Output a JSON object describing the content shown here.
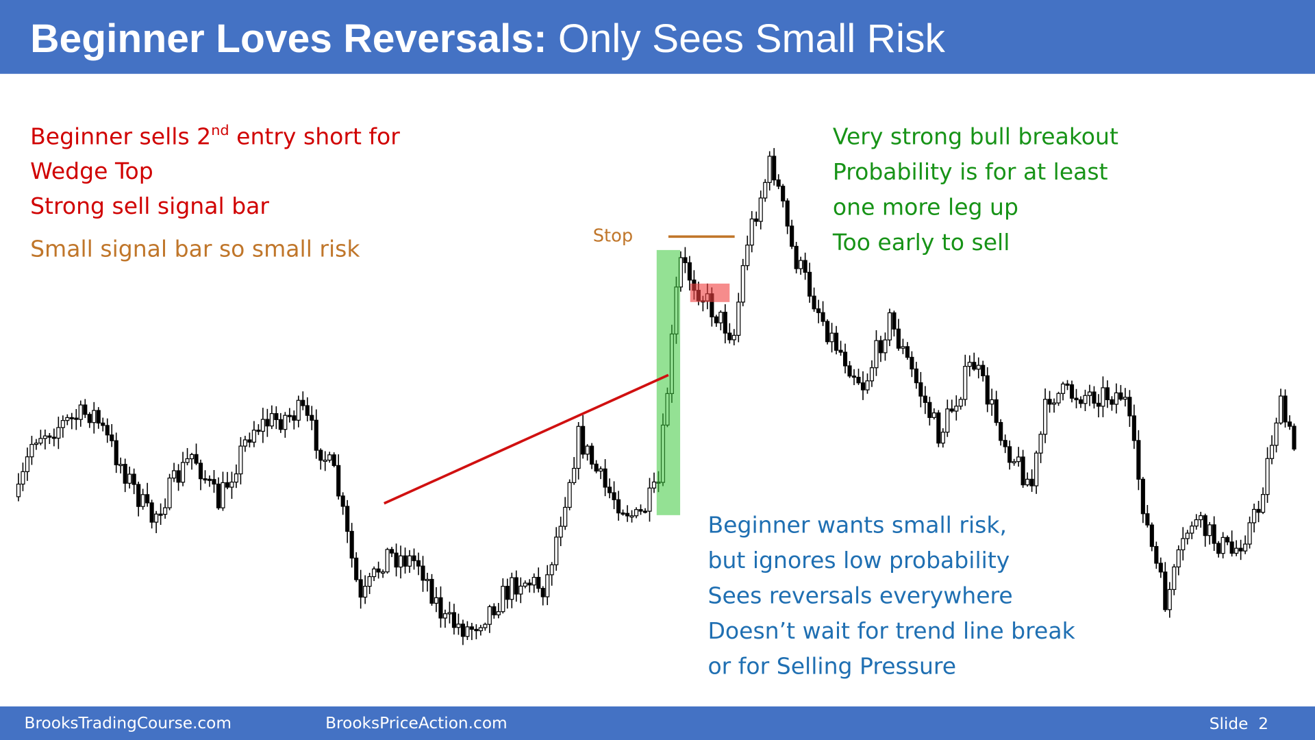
{
  "header": {
    "title_bold": "Beginner Loves Reversals:",
    "title_rest": " Only Sees Small Risk"
  },
  "left_notes": {
    "line1": {
      "before": "Beginner sells 2",
      "sup": "nd",
      "after": " entry short for"
    },
    "line2": "Wedge Top",
    "line3": "Strong sell signal bar",
    "line4": "Small signal bar so small risk"
  },
  "stop_label": "Stop",
  "right_notes": [
    "Very strong bull breakout",
    "Probability is for at least",
    "one more leg up",
    "Too early to sell"
  ],
  "bottom_notes": [
    "Beginner wants small risk,",
    "but ignores low probability",
    "Sees reversals everywhere",
    "Doesn’t wait for trend line break",
    "or for Selling Pressure"
  ],
  "footer": {
    "left": "BrooksTradingCourse.com",
    "center": "BrooksPriceAction.com",
    "slide": "Slide  2"
  }
}
